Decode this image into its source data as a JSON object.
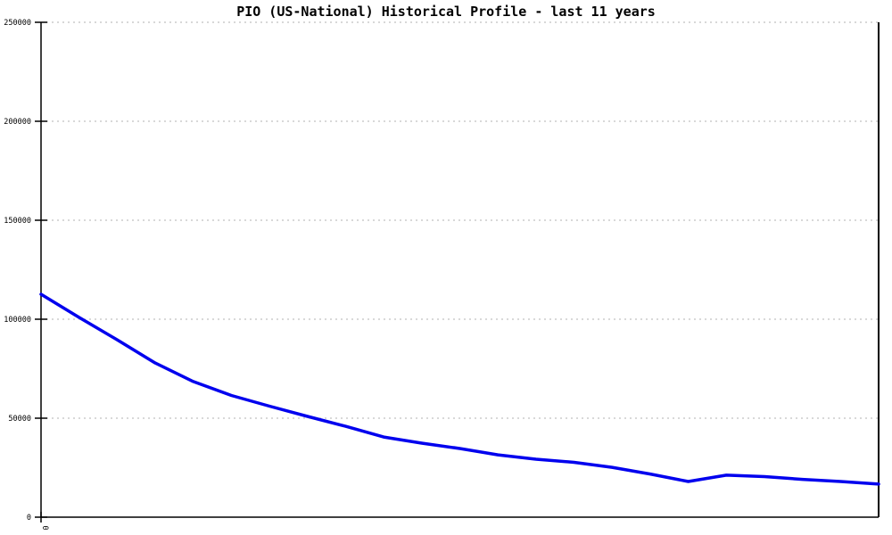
{
  "title": "PIO (US-National) Historical Profile - last 11 years",
  "chart_data": {
    "type": "line",
    "title": "PIO (US-National) Historical Profile - last 11 years",
    "xlabel": "",
    "ylabel": "",
    "x_years": [
      0,
      0.5,
      1,
      1.5,
      2,
      2.5,
      3,
      3.5,
      4,
      4.5,
      5,
      5.5,
      6,
      6.5,
      7,
      7.5,
      8,
      8.5,
      9,
      9.5,
      10,
      10.5,
      11
    ],
    "values": [
      112600,
      100900,
      89600,
      77900,
      68500,
      61500,
      56100,
      50900,
      45900,
      40500,
      37400,
      34700,
      31500,
      29300,
      27700,
      25200,
      21800,
      18000,
      21200,
      20500,
      19100,
      18000,
      16700
    ],
    "ylim": [
      0,
      250000
    ],
    "yticks": [
      0,
      50000,
      100000,
      150000,
      200000,
      250000
    ],
    "ytick_labels": [
      "0",
      "50000",
      "100000",
      "150000",
      "200000",
      "250000"
    ],
    "xtick_labels": [
      "0"
    ],
    "legend_position": "none",
    "grid": "horizontal-dotted",
    "line_color": "#0000ee",
    "grid_color": "#b0b0b0",
    "axis_color": "#000000",
    "background_color": "#ffffff"
  }
}
